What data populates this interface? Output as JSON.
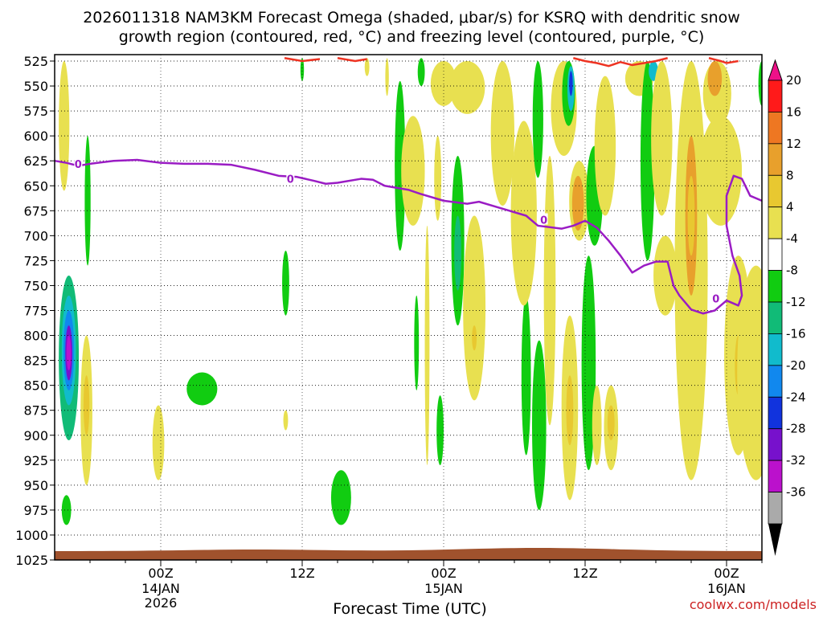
{
  "chart_data": {
    "type": "contour",
    "title_line1": "2026011318 NAM3KM Forecast Omega (shaded, μbar/s) for KSRQ with dendritic snow",
    "title_line2": "growth region (contoured, red, °C) and freezing level (contoured, purple, °C)",
    "xlabel": "Forecast Time (UTC)",
    "credit": "coolwx.com/models",
    "y_levels": [
      525,
      550,
      575,
      600,
      625,
      650,
      675,
      700,
      725,
      750,
      775,
      800,
      825,
      850,
      875,
      900,
      925,
      950,
      975,
      1000,
      1025
    ],
    "x_hour_range": [
      -3,
      57
    ],
    "x_ticks": [
      {
        "hour": 6,
        "label": "00Z",
        "date": "14JAN",
        "year": "2026"
      },
      {
        "hour": 18,
        "label": "12Z",
        "date": "",
        "year": ""
      },
      {
        "hour": 30,
        "label": "00Z",
        "date": "15JAN",
        "year": ""
      },
      {
        "hour": 42,
        "label": "12Z",
        "date": "",
        "year": ""
      },
      {
        "hour": 54,
        "label": "00Z",
        "date": "16JAN",
        "year": ""
      }
    ],
    "x_minor_hours": [
      0,
      3,
      9,
      12,
      15,
      21,
      24,
      27,
      33,
      36,
      39,
      45,
      48,
      51,
      57
    ],
    "colorbar": {
      "levels": [
        "20",
        "16",
        "12",
        "8",
        "4",
        "-4",
        "-8",
        "-12",
        "-16",
        "-20",
        "-24",
        "-28",
        "-32",
        "-36"
      ],
      "colors": [
        "#ff1a1a",
        "#ee7722",
        "#e8a02c",
        "#e8c830",
        "#e8e050",
        "#ffffff",
        "#11cc11",
        "#11bb77",
        "#11bbcc",
        "#1188ee",
        "#1133dd",
        "#7711cc",
        "#bb11cc",
        "#aaaaaa"
      ],
      "top_color": "#ee1188",
      "bottom_color": "#000000"
    },
    "freezing_level": {
      "label": "0",
      "points": [
        [
          -3,
          625
        ],
        [
          -2,
          627
        ],
        [
          -1,
          630
        ],
        [
          0,
          628
        ],
        [
          2,
          625
        ],
        [
          4,
          624
        ],
        [
          6,
          627
        ],
        [
          8,
          628
        ],
        [
          10,
          628
        ],
        [
          12,
          629
        ],
        [
          14,
          634
        ],
        [
          16,
          640
        ],
        [
          17.5,
          641
        ],
        [
          19,
          645
        ],
        [
          20,
          648
        ],
        [
          21,
          647
        ],
        [
          23,
          643
        ],
        [
          24,
          644
        ],
        [
          25,
          650
        ],
        [
          27,
          654
        ],
        [
          28,
          658
        ],
        [
          30,
          665
        ],
        [
          32,
          668
        ],
        [
          33,
          666
        ],
        [
          35,
          673
        ],
        [
          37,
          680
        ],
        [
          38,
          690
        ],
        [
          40,
          693
        ],
        [
          41,
          690
        ],
        [
          42,
          685
        ],
        [
          43,
          692
        ],
        [
          44,
          705
        ],
        [
          45,
          720
        ],
        [
          46,
          737
        ],
        [
          47,
          730
        ],
        [
          48,
          726
        ],
        [
          49,
          726
        ],
        [
          49.5,
          750
        ],
        [
          50,
          760
        ],
        [
          51,
          774
        ],
        [
          52,
          778
        ],
        [
          53,
          775
        ],
        [
          54,
          765
        ],
        [
          55,
          770
        ],
        [
          55.3,
          760
        ],
        [
          55.1,
          740
        ],
        [
          54.5,
          720
        ],
        [
          54.0,
          690
        ],
        [
          54.0,
          660
        ],
        [
          54.6,
          640
        ],
        [
          55.3,
          643
        ],
        [
          56,
          660
        ],
        [
          57,
          665
        ]
      ]
    },
    "freezing_labels": [
      [
        -1,
        628
      ],
      [
        17,
        643
      ],
      [
        38.5,
        684
      ],
      [
        53.1,
        763
      ]
    ],
    "dgz_contour": {
      "segments": [
        [
          [
            16.5,
            522
          ],
          [
            18,
            525
          ],
          [
            19.5,
            523
          ]
        ],
        [
          [
            21,
            522
          ],
          [
            22.5,
            525
          ],
          [
            23.5,
            523
          ]
        ],
        [
          [
            41,
            522
          ],
          [
            42,
            525
          ],
          [
            43,
            527
          ],
          [
            44,
            530
          ],
          [
            45,
            526
          ],
          [
            46,
            529
          ],
          [
            47,
            527
          ],
          [
            48,
            525
          ],
          [
            49,
            522
          ]
        ],
        [
          [
            52.5,
            522
          ],
          [
            53.5,
            525
          ],
          [
            54,
            527
          ],
          [
            55,
            525
          ]
        ]
      ]
    },
    "omega_features": [
      {
        "hour": -2.2,
        "p0": 525,
        "p1": 655,
        "w": 0.45,
        "v": 4
      },
      {
        "hour": -1.8,
        "p0": 740,
        "p1": 905,
        "w": 0.85,
        "v": -8
      },
      {
        "hour": -1.8,
        "p0": 760,
        "p1": 870,
        "w": 0.6,
        "v": -12
      },
      {
        "hour": -1.8,
        "p0": 775,
        "p1": 855,
        "w": 0.45,
        "v": -16
      },
      {
        "hour": -1.8,
        "p0": 790,
        "p1": 845,
        "w": 0.3,
        "v": -24
      },
      {
        "hour": -1.8,
        "p0": 800,
        "p1": 835,
        "w": 0.2,
        "v": -28
      },
      {
        "hour": -2.0,
        "p0": 960,
        "p1": 990,
        "w": 0.4,
        "v": -4
      },
      {
        "hour": -0.3,
        "p0": 800,
        "p1": 950,
        "w": 0.5,
        "v": 4
      },
      {
        "hour": -0.3,
        "p0": 840,
        "p1": 900,
        "w": 0.25,
        "v": 8
      },
      {
        "hour": -0.2,
        "p0": 600,
        "p1": 730,
        "w": 0.25,
        "v": -4
      },
      {
        "hour": 5.8,
        "p0": 870,
        "p1": 945,
        "w": 0.5,
        "v": 4
      },
      {
        "hour": 9.5,
        "p0": 837,
        "p1": 870,
        "w": 1.3,
        "v": -4
      },
      {
        "hour": 18,
        "p0": 522,
        "p1": 545,
        "w": 0.15,
        "v": -4
      },
      {
        "hour": 16.6,
        "p0": 875,
        "p1": 895,
        "w": 0.2,
        "v": 4
      },
      {
        "hour": 16.6,
        "p0": 715,
        "p1": 780,
        "w": 0.3,
        "v": -4
      },
      {
        "hour": 21.3,
        "p0": 935,
        "p1": 990,
        "w": 0.85,
        "v": -4
      },
      {
        "hour": 23.5,
        "p0": 522,
        "p1": 540,
        "w": 0.2,
        "v": 4
      },
      {
        "hour": 25.2,
        "p0": 522,
        "p1": 560,
        "w": 0.15,
        "v": 4
      },
      {
        "hour": 26.3,
        "p0": 545,
        "p1": 715,
        "w": 0.45,
        "v": -4
      },
      {
        "hour": 27.4,
        "p0": 580,
        "p1": 690,
        "w": 1.0,
        "v": 4
      },
      {
        "hour": 28.1,
        "p0": 522,
        "p1": 550,
        "w": 0.3,
        "v": -4
      },
      {
        "hour": 27.7,
        "p0": 760,
        "p1": 855,
        "w": 0.2,
        "v": -4
      },
      {
        "hour": 28.6,
        "p0": 690,
        "p1": 930,
        "w": 0.2,
        "v": 4
      },
      {
        "hour": 29.5,
        "p0": 600,
        "p1": 685,
        "w": 0.3,
        "v": 4
      },
      {
        "hour": 29.7,
        "p0": 860,
        "p1": 930,
        "w": 0.3,
        "v": -4
      },
      {
        "hour": 30.0,
        "p0": 525,
        "p1": 570,
        "w": 1.1,
        "v": 4
      },
      {
        "hour": 31.2,
        "p0": 620,
        "p1": 790,
        "w": 0.55,
        "v": -4
      },
      {
        "hour": 31.2,
        "p0": 680,
        "p1": 755,
        "w": 0.3,
        "v": -8
      },
      {
        "hour": 32.0,
        "p0": 525,
        "p1": 578,
        "w": 1.5,
        "v": 4
      },
      {
        "hour": 32.6,
        "p0": 680,
        "p1": 865,
        "w": 0.95,
        "v": 4
      },
      {
        "hour": 32.6,
        "p0": 790,
        "p1": 815,
        "w": 0.2,
        "v": 8
      },
      {
        "hour": 34.3,
        "p0": 598,
        "p1": 610,
        "w": 0.2,
        "v": -4
      },
      {
        "hour": 35.0,
        "p0": 525,
        "p1": 670,
        "w": 1.0,
        "v": 4
      },
      {
        "hour": 37.0,
        "p0": 760,
        "p1": 920,
        "w": 0.4,
        "v": -4
      },
      {
        "hour": 36.8,
        "p0": 585,
        "p1": 770,
        "w": 1.1,
        "v": 4
      },
      {
        "hour": 38.1,
        "p0": 805,
        "p1": 975,
        "w": 0.6,
        "v": -4
      },
      {
        "hour": 38.0,
        "p0": 525,
        "p1": 642,
        "w": 0.45,
        "v": -4
      },
      {
        "hour": 39.0,
        "p0": 620,
        "p1": 890,
        "w": 0.5,
        "v": 4
      },
      {
        "hour": 39.0,
        "p0": 830,
        "p1": 875,
        "w": 0.3,
        "v": 4
      },
      {
        "hour": 40.2,
        "p0": 525,
        "p1": 620,
        "w": 1.1,
        "v": 4
      },
      {
        "hour": 40.6,
        "p0": 525,
        "p1": 590,
        "w": 0.55,
        "v": -4
      },
      {
        "hour": 40.8,
        "p0": 530,
        "p1": 575,
        "w": 0.3,
        "v": -12
      },
      {
        "hour": 40.8,
        "p0": 535,
        "p1": 560,
        "w": 0.15,
        "v": -20
      },
      {
        "hour": 41.5,
        "p0": 625,
        "p1": 705,
        "w": 0.85,
        "v": 4
      },
      {
        "hour": 41.4,
        "p0": 640,
        "p1": 695,
        "w": 0.5,
        "v": 12
      },
      {
        "hour": 40.7,
        "p0": 780,
        "p1": 965,
        "w": 0.7,
        "v": 4
      },
      {
        "hour": 40.7,
        "p0": 840,
        "p1": 910,
        "w": 0.3,
        "v": 8
      },
      {
        "hour": 42.8,
        "p0": 610,
        "p1": 710,
        "w": 0.7,
        "v": -4
      },
      {
        "hour": 42.3,
        "p0": 720,
        "p1": 935,
        "w": 0.6,
        "v": -4
      },
      {
        "hour": 43.7,
        "p0": 540,
        "p1": 680,
        "w": 0.9,
        "v": 4
      },
      {
        "hour": 43.0,
        "p0": 850,
        "p1": 930,
        "w": 0.4,
        "v": 4
      },
      {
        "hour": 44.2,
        "p0": 850,
        "p1": 935,
        "w": 0.6,
        "v": 4
      },
      {
        "hour": 44.2,
        "p0": 870,
        "p1": 905,
        "w": 0.3,
        "v": 8
      },
      {
        "hour": 46.6,
        "p0": 525,
        "p1": 560,
        "w": 1.2,
        "v": 4
      },
      {
        "hour": 47.3,
        "p0": 525,
        "p1": 725,
        "w": 0.6,
        "v": -4
      },
      {
        "hour": 47.8,
        "p0": 525,
        "p1": 545,
        "w": 0.4,
        "v": -12
      },
      {
        "hour": 48.5,
        "p0": 525,
        "p1": 680,
        "w": 0.9,
        "v": 4
      },
      {
        "hour": 48.8,
        "p0": 700,
        "p1": 780,
        "w": 1.0,
        "v": 4
      },
      {
        "hour": 51.0,
        "p0": 525,
        "p1": 945,
        "w": 1.4,
        "v": 4
      },
      {
        "hour": 51.0,
        "p0": 600,
        "p1": 760,
        "w": 0.5,
        "v": 12
      },
      {
        "hour": 51.0,
        "p0": 640,
        "p1": 720,
        "w": 0.3,
        "v": 8
      },
      {
        "hour": 53.2,
        "p0": 525,
        "p1": 590,
        "w": 1.2,
        "v": 4
      },
      {
        "hour": 53.0,
        "p0": 525,
        "p1": 560,
        "w": 0.6,
        "v": 12
      },
      {
        "hour": 53.5,
        "p0": 580,
        "p1": 690,
        "w": 1.8,
        "v": 4
      },
      {
        "hour": 55.0,
        "p0": 720,
        "p1": 920,
        "w": 1.2,
        "v": 4
      },
      {
        "hour": 55.0,
        "p0": 800,
        "p1": 860,
        "w": 0.3,
        "v": 8
      },
      {
        "hour": 56.5,
        "p0": 730,
        "p1": 945,
        "w": 1.6,
        "v": 4
      },
      {
        "hour": 57.0,
        "p0": 525,
        "p1": 570,
        "w": 0.3,
        "v": -4
      }
    ],
    "terrain_color": "#a0522d"
  }
}
